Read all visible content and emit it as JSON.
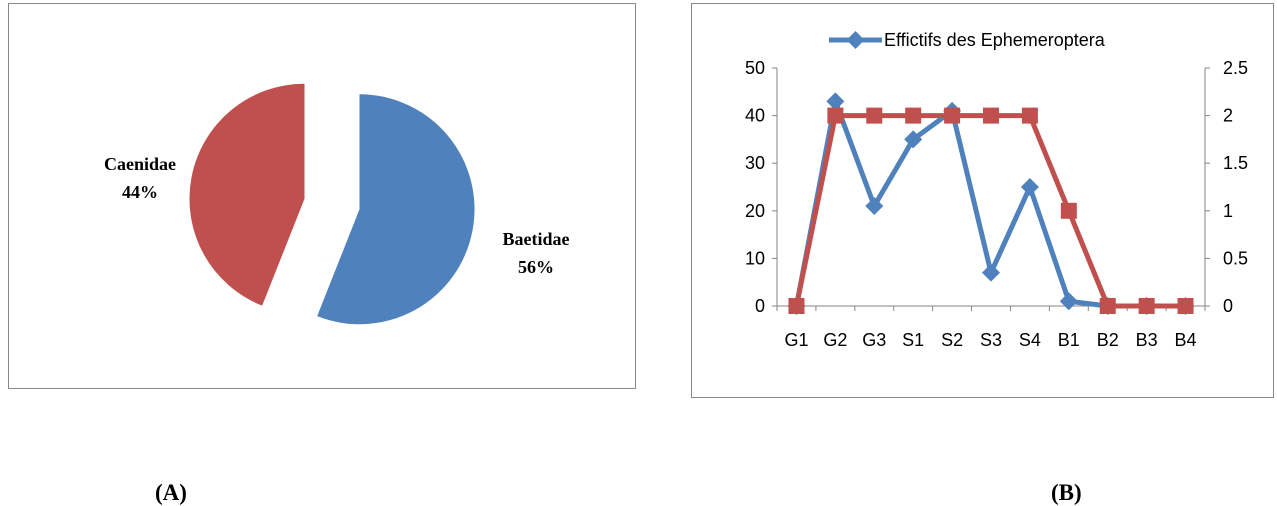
{
  "chart_data": [
    {
      "type": "pie",
      "panel": "A",
      "slices": [
        {
          "label": "Baetidae",
          "value": 56,
          "pct_label": "56%",
          "color": "#4F81BD"
        },
        {
          "label": "Caenidae",
          "value": 44,
          "pct_label": "44%",
          "color": "#C0504D"
        }
      ],
      "exploded": true
    },
    {
      "type": "line",
      "panel": "B",
      "categories": [
        "G1",
        "G2",
        "G3",
        "S1",
        "S2",
        "S3",
        "S4",
        "B1",
        "B2",
        "B3",
        "B4"
      ],
      "series": [
        {
          "name": "Effictifs des Ephemeroptera",
          "axis": "left",
          "color": "#4F81BD",
          "marker": "diamond",
          "values": [
            0,
            43,
            21,
            35,
            41,
            7,
            25,
            1,
            0,
            0,
            0
          ]
        },
        {
          "name": "",
          "axis": "right",
          "color": "#C0504D",
          "marker": "square",
          "values": [
            0,
            2,
            2,
            2,
            2,
            2,
            2,
            1,
            0,
            0,
            0
          ]
        }
      ],
      "ylim_left": [
        0,
        50
      ],
      "yticks_left": [
        "0",
        "10",
        "20",
        "30",
        "40",
        "50"
      ],
      "ylim_right": [
        0,
        2.5
      ],
      "yticks_right": [
        "0",
        "0.5",
        "1",
        "1.5",
        "2",
        "2.5"
      ],
      "legend_position": "top",
      "grid": false
    }
  ],
  "captions": {
    "a": "(A)",
    "b": "(B)"
  }
}
